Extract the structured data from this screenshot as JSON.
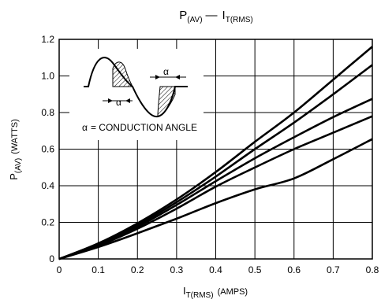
{
  "chart_data": {
    "type": "line",
    "title": {
      "main": "P",
      "main_sub": "(AV)",
      "sep": "—",
      "secondary": "I",
      "secondary_sub": "T(RMS)"
    },
    "xlabel": {
      "main": "I",
      "sub": "T(RMS)",
      "unit": "(AMPS)"
    },
    "ylabel": {
      "main": "P",
      "sub": "(AV)",
      "unit": "(WATTS)"
    },
    "xlim": [
      0,
      0.8
    ],
    "ylim": [
      0,
      1.2
    ],
    "x_ticks": [
      "0",
      "0.1",
      "0.2",
      "0.3",
      "0.4",
      "0.5",
      "0.6",
      "0.7",
      "0.8"
    ],
    "y_ticks": [
      "0",
      "0.2",
      "0.4",
      "0.6",
      "0.8",
      "1.0",
      "1.2"
    ],
    "grid": true,
    "series": [
      {
        "x": [
          0,
          0.1,
          0.2,
          0.3,
          0.4,
          0.5,
          0.6,
          0.7,
          0.8
        ],
        "values": [
          0,
          0.085,
          0.195,
          0.325,
          0.475,
          0.64,
          0.8,
          0.98,
          1.16
        ]
      },
      {
        "x": [
          0,
          0.1,
          0.2,
          0.3,
          0.4,
          0.5,
          0.6,
          0.7,
          0.8
        ],
        "values": [
          0,
          0.08,
          0.185,
          0.31,
          0.45,
          0.6,
          0.745,
          0.9,
          1.06
        ]
      },
      {
        "x": [
          0,
          0.1,
          0.2,
          0.3,
          0.4,
          0.5,
          0.6,
          0.7,
          0.8
        ],
        "values": [
          0,
          0.075,
          0.175,
          0.295,
          0.425,
          0.55,
          0.665,
          0.775,
          0.875
        ]
      },
      {
        "x": [
          0,
          0.1,
          0.2,
          0.3,
          0.4,
          0.5,
          0.6,
          0.7,
          0.8
        ],
        "values": [
          0,
          0.072,
          0.165,
          0.275,
          0.395,
          0.5,
          0.6,
          0.69,
          0.78
        ]
      },
      {
        "x": [
          0,
          0.1,
          0.2,
          0.3,
          0.4,
          0.5,
          0.6,
          0.7,
          0.8
        ],
        "values": [
          0,
          0.065,
          0.14,
          0.22,
          0.305,
          0.38,
          0.44,
          0.545,
          0.655
        ]
      }
    ],
    "inset": {
      "alpha_symbol": "α",
      "caption": "= CONDUCTION ANGLE"
    }
  }
}
